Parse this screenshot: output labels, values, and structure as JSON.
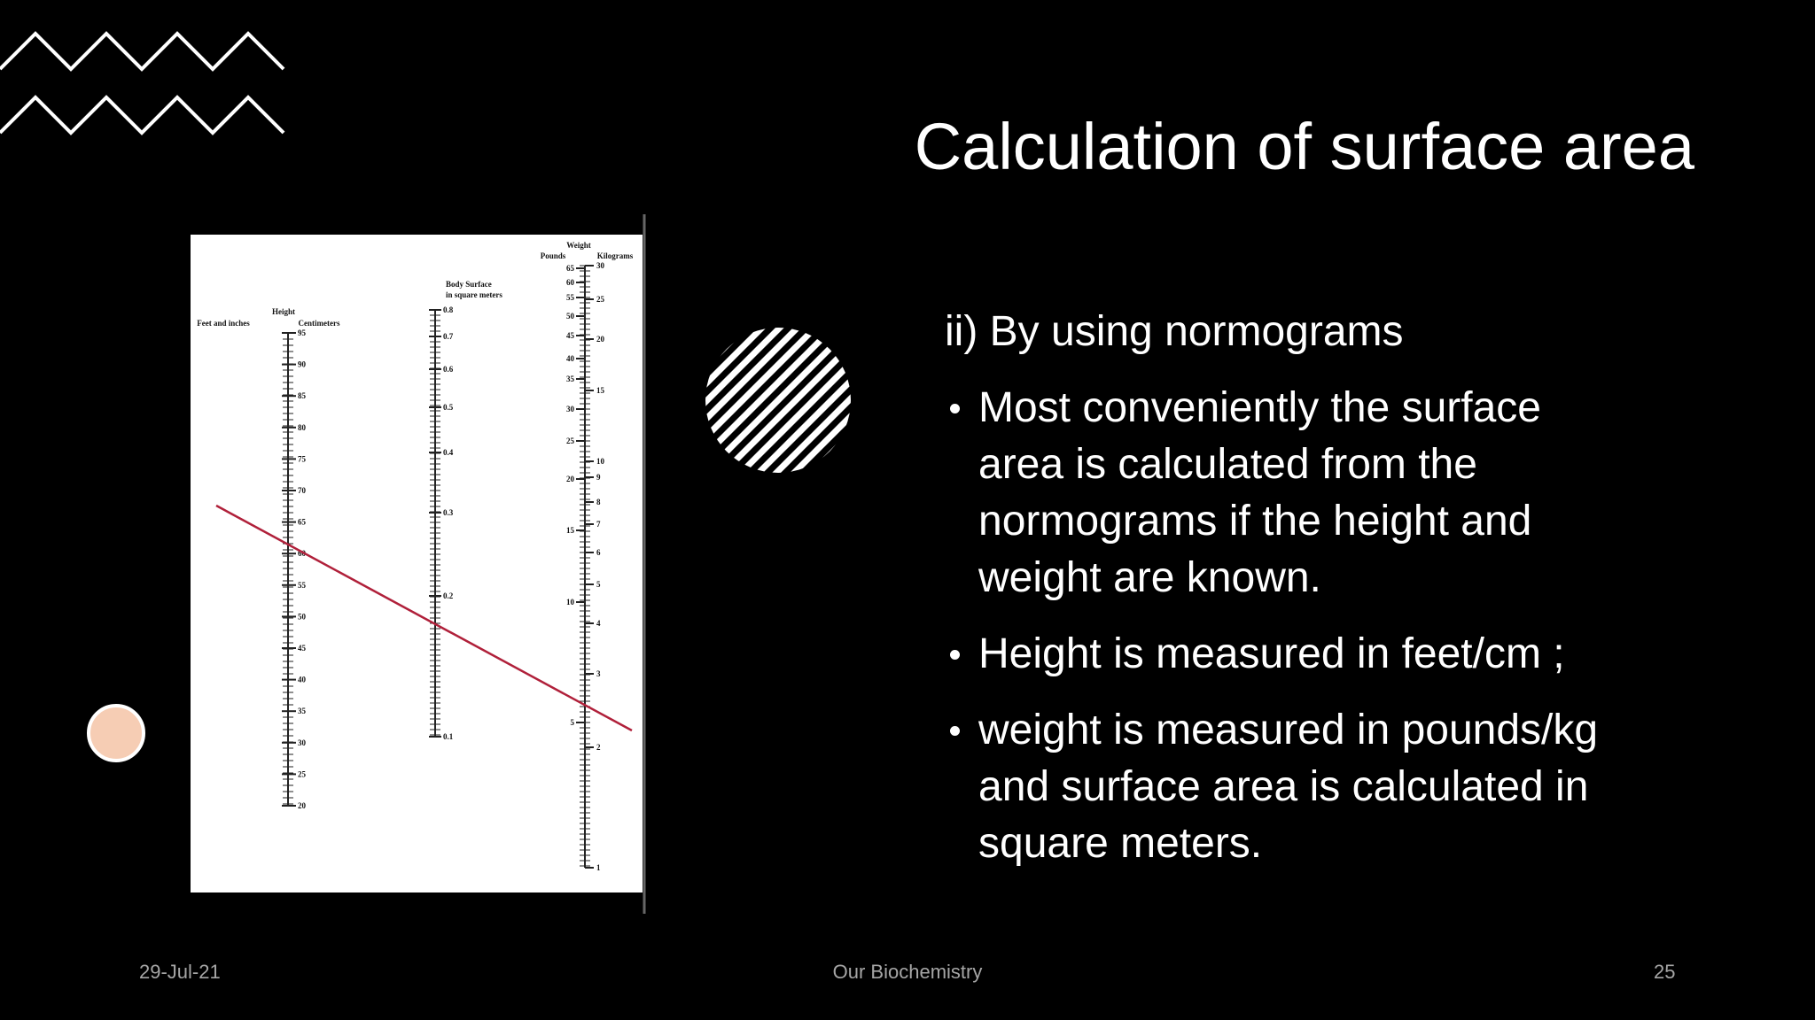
{
  "title": "Calculation of surface area",
  "content": {
    "intro": "ii) By using normograms",
    "bullets": [
      {
        "lines": [
          "Most conveniently the surface",
          "area is calculated from the",
          "normograms if the height and",
          "weight are known."
        ]
      },
      {
        "lines": [
          "Height is measured in feet/cm ;"
        ]
      },
      {
        "lines": [
          "weight is measured in pounds/kg",
          "and surface area is calculated in",
          "square meters."
        ]
      }
    ]
  },
  "nomogram": {
    "height_header": "Height",
    "feet_header": "Feet and inches",
    "cm_header": "Centimeters",
    "cm_labels": [
      "95",
      "90",
      "85",
      "80",
      "75",
      "70",
      "65",
      "60",
      "55",
      "50",
      "45",
      "40",
      "35",
      "30",
      "25",
      "20"
    ],
    "surface_header_lines": [
      "Body Surface",
      "in square meters"
    ],
    "surface_labels": [
      "0.8",
      "0.7",
      "0.6",
      "0.5",
      "0.4",
      "0.3",
      "0.2",
      "0.1"
    ],
    "weight_header": "Weight",
    "pounds_header": "Pounds",
    "kg_header": "Kilograms",
    "pounds_labels": [
      "65",
      "60",
      "55",
      "50",
      "45",
      "40",
      "35",
      "30",
      "25",
      "20",
      "15",
      "10",
      "5"
    ],
    "kg_labels": [
      "30",
      "25",
      "20",
      "15",
      "10",
      "9",
      "8",
      "7",
      "6",
      "5",
      "4",
      "3",
      "2",
      "1"
    ]
  },
  "footer": {
    "date": "29-Jul-21",
    "center": "Our Biochemistry",
    "page": "25"
  }
}
